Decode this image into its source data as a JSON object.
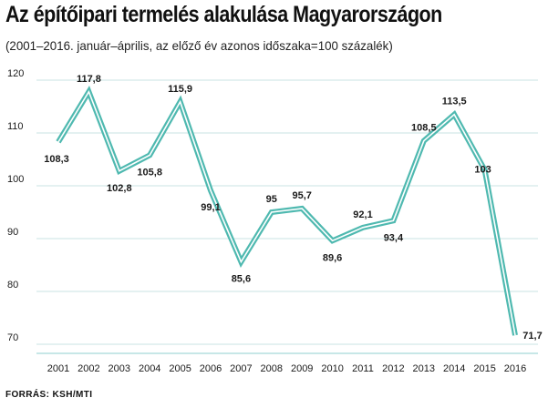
{
  "chart_data": {
    "type": "line",
    "title": "Az építőipari termelés alakulása Magyarországon",
    "subtitle": "(2001–2016. január–április, az előző év azonos időszaka=100 százalék)",
    "source": "FORRÁS: KSH/MTI",
    "xlabel": "",
    "ylabel": "",
    "x": [
      "2001",
      "2002",
      "2003",
      "2004",
      "2005",
      "2006",
      "2007",
      "2008",
      "2009",
      "2010",
      "2011",
      "2012",
      "2013",
      "2014",
      "2015",
      "2016"
    ],
    "series": [
      {
        "values": [
          108.3,
          117.8,
          102.8,
          105.8,
          115.9,
          99.1,
          85.6,
          95,
          95.7,
          89.6,
          92.1,
          93.4,
          108.5,
          113.5,
          103,
          71.7
        ],
        "labels": [
          "108,3",
          "117,8",
          "102,8",
          "105,8",
          "115,9",
          "99,1",
          "85,6",
          "95",
          "95,7",
          "89,6",
          "92,1",
          "93,4",
          "108,5",
          "113,5",
          "103",
          "71,7"
        ]
      }
    ],
    "yticks": [
      70,
      80,
      90,
      100,
      110,
      120
    ],
    "ylim": [
      68,
      122
    ],
    "grid": true,
    "colors": {
      "line_outer": "#4fb9b0",
      "line_inner": "#ffffff",
      "grid": "#c9e3e3",
      "text": "#1a1a1a"
    }
  }
}
